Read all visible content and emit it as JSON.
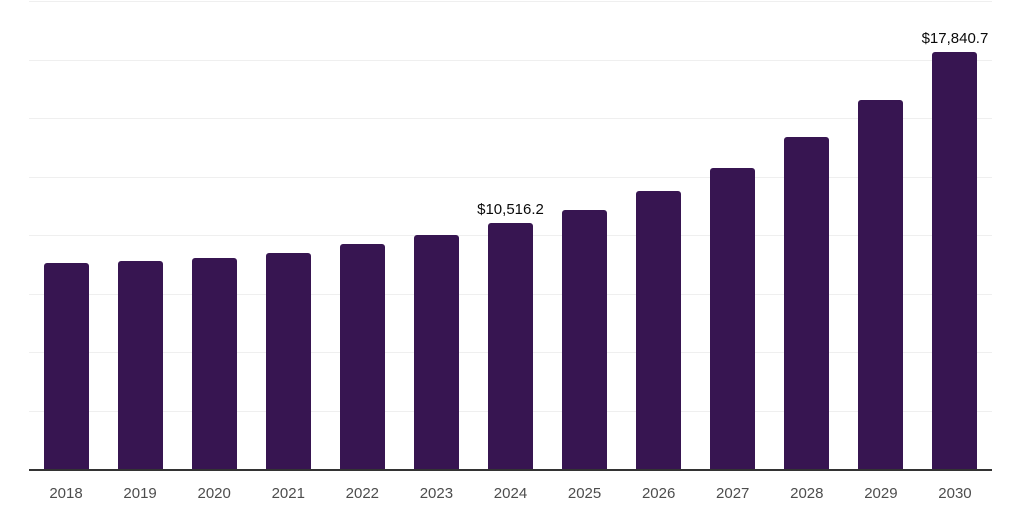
{
  "chart_data": {
    "type": "bar",
    "title": "",
    "xlabel": "",
    "ylabel": "",
    "categories": [
      "2018",
      "2019",
      "2020",
      "2021",
      "2022",
      "2023",
      "2024",
      "2025",
      "2026",
      "2027",
      "2028",
      "2029",
      "2030"
    ],
    "values": [
      8800,
      8880,
      9020,
      9250,
      9615,
      10000,
      10516.2,
      11055,
      11875,
      12845,
      14175,
      15780,
      17840.7
    ],
    "data_labels": [
      "",
      "",
      "",
      "",
      "",
      "",
      "$10,516.2",
      "",
      "",
      "",
      "",
      "",
      "$17,840.7"
    ],
    "ylim": [
      0,
      20000
    ],
    "grid_step": 2500,
    "grid": true,
    "legend": false,
    "colors": {
      "bar": "#371551",
      "grid": "#efefef",
      "axis": "#333333",
      "tick_label": "#4d4d4d",
      "data_label": "#0a0a0a",
      "background": "#ffffff"
    }
  }
}
